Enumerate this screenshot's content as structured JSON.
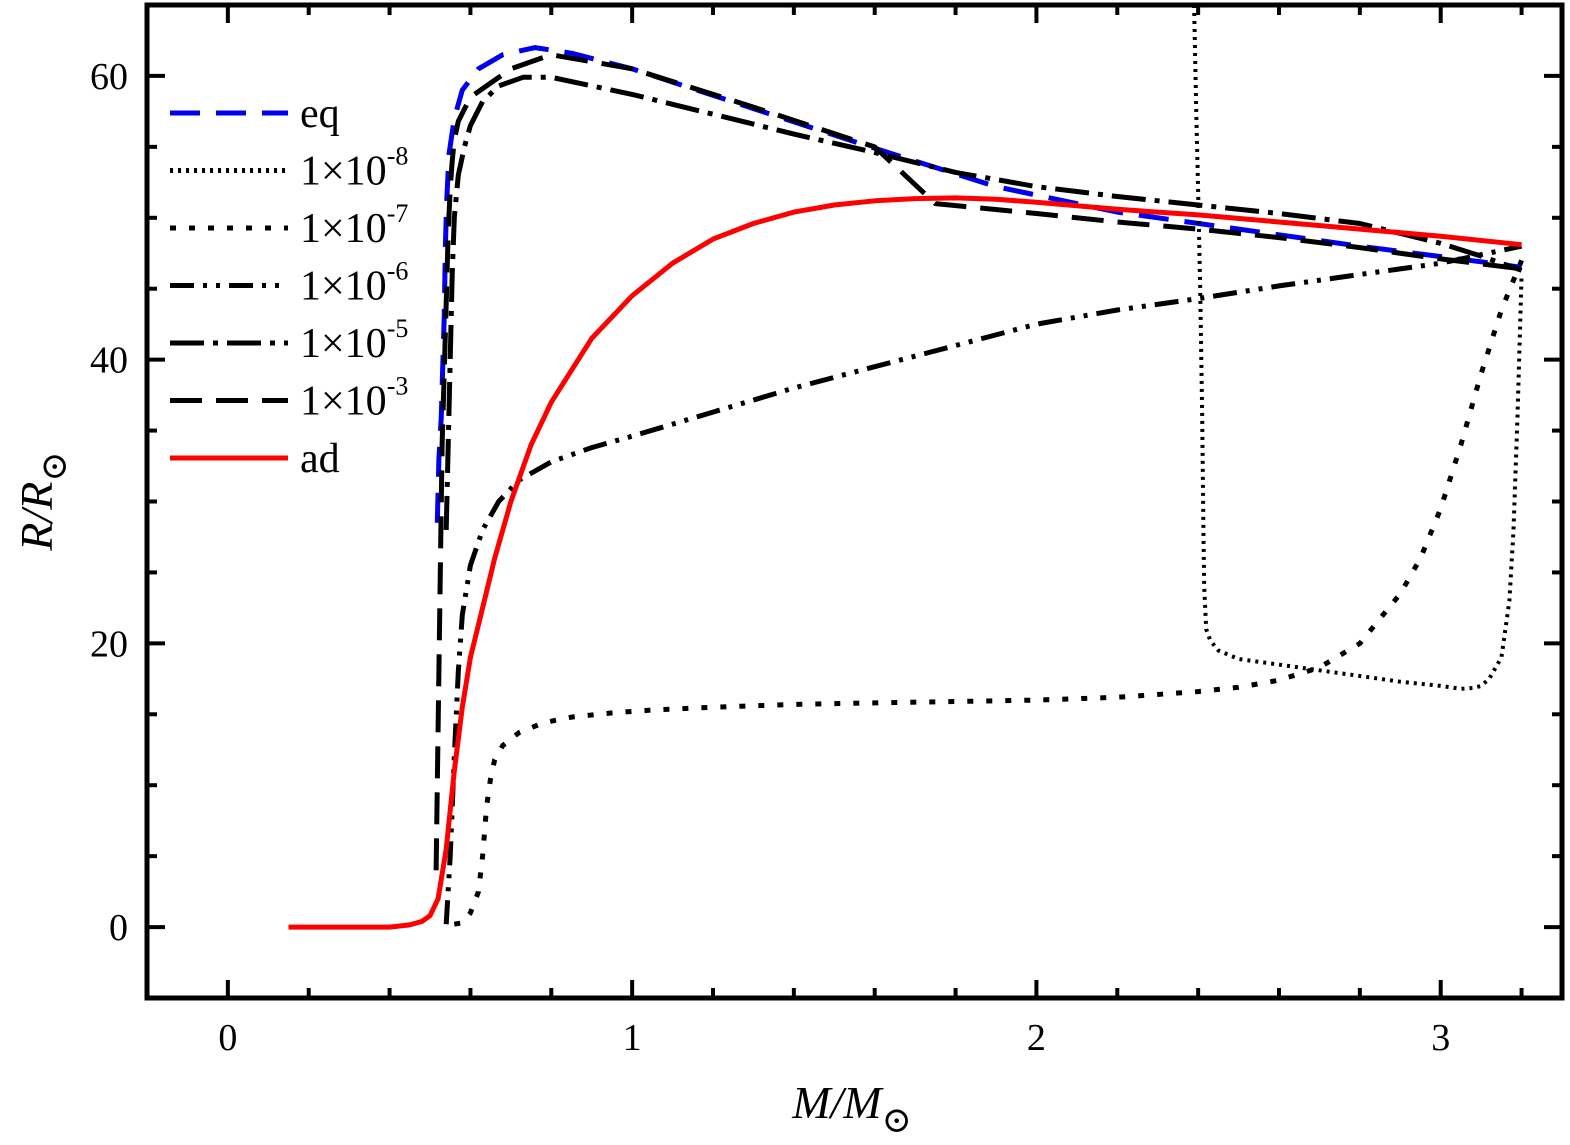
{
  "chart_data": {
    "type": "line",
    "title": "",
    "xlabel": "M/M⊙",
    "ylabel": "R/R⊙",
    "xlim": [
      -0.2,
      3.3
    ],
    "ylim": [
      -5,
      65
    ],
    "x_ticks": [
      0,
      1,
      2,
      3
    ],
    "y_ticks": [
      0,
      20,
      40,
      60
    ],
    "x_tick_labels": [
      "0",
      "1",
      "2",
      "3"
    ],
    "y_tick_labels": [
      "0",
      "20",
      "40",
      "60"
    ],
    "legend_position": "top-left",
    "series": [
      {
        "name": "eq",
        "label_base": "eq",
        "label_exp": "",
        "color": "#0000ee",
        "dash": "30,16",
        "x": [
          0.518,
          0.522,
          0.528,
          0.53,
          0.535,
          0.538,
          0.541,
          0.547,
          0.56,
          0.58,
          0.62,
          0.68,
          0.76,
          0.85,
          1.0,
          1.3,
          1.6,
          1.9,
          2.2,
          2.5,
          2.8,
          3.1,
          3.2
        ],
        "y": [
          28.5,
          33,
          36,
          38,
          43,
          48,
          51,
          54.5,
          57,
          59,
          60.5,
          61.5,
          62,
          61.6,
          60.5,
          57.7,
          54.9,
          52.2,
          50.4,
          49.2,
          48,
          46.9,
          46.5
        ]
      },
      {
        "name": "1×10-8",
        "label_base": "1×10",
        "label_exp": "-8",
        "color": "#000000",
        "dash": "3,5",
        "x": [
          2.39,
          2.395,
          2.4,
          2.405,
          2.41,
          2.413,
          2.415,
          2.42,
          2.43,
          2.45,
          2.5,
          2.6,
          2.7,
          2.8,
          2.9,
          3.0,
          3.05,
          3.08,
          3.1,
          3.12,
          3.15,
          3.17,
          3.18,
          3.19,
          3.2
        ],
        "y": [
          65,
          58,
          52,
          45,
          36,
          28,
          24,
          21,
          20.2,
          19.5,
          18.9,
          18.5,
          18.1,
          17.7,
          17.3,
          17.0,
          16.8,
          16.85,
          17.0,
          17.5,
          19,
          23,
          28,
          36,
          46
        ]
      },
      {
        "name": "1×10-7",
        "label_base": "1×10",
        "label_exp": "-7",
        "color": "#000000",
        "dash": "6,13",
        "x": [
          0.56,
          0.58,
          0.6,
          0.62,
          0.63,
          0.64,
          0.65,
          0.66,
          0.68,
          0.72,
          0.78,
          0.85,
          0.95,
          1.05,
          1.2,
          1.4,
          1.6,
          1.8,
          2.0,
          2.2,
          2.4,
          2.5,
          2.6,
          2.7,
          2.8,
          2.9,
          2.95,
          3.0,
          3.05,
          3.1,
          3.15,
          3.2
        ],
        "y": [
          0.2,
          0.3,
          1.0,
          2.5,
          5,
          8.5,
          10.5,
          11.8,
          12.8,
          13.7,
          14.4,
          14.8,
          15.1,
          15.3,
          15.5,
          15.7,
          15.8,
          15.9,
          16.0,
          16.2,
          16.6,
          16.9,
          17.4,
          18.3,
          20.0,
          23.5,
          26.0,
          29.5,
          34.0,
          39.0,
          43.5,
          47.0
        ]
      },
      {
        "name": "1×10-6",
        "label_base": "1×10",
        "label_exp": "-6",
        "color": "#000000",
        "dash": "24,9,4,9,4,9",
        "x": [
          0.54,
          0.55,
          0.56,
          0.57,
          0.58,
          0.6,
          0.63,
          0.67,
          0.72,
          0.8,
          0.9,
          1.0,
          1.2,
          1.4,
          1.6,
          1.8,
          2.0,
          2.2,
          2.4,
          2.6,
          2.8,
          3.0,
          3.2
        ],
        "y": [
          0.2,
          5,
          12,
          18,
          22,
          25.5,
          28,
          30,
          31.5,
          32.8,
          33.8,
          34.6,
          36.3,
          38.0,
          39.5,
          41.0,
          42.5,
          43.5,
          44.3,
          45.2,
          46.0,
          46.8,
          48.0
        ]
      },
      {
        "name": "1×10-5",
        "label_base": "1×10",
        "label_exp": "-5",
        "color": "#000000",
        "dash": "34,9,5,9",
        "x": [
          0.54,
          0.545,
          0.55,
          0.555,
          0.56,
          0.57,
          0.585,
          0.6,
          0.63,
          0.67,
          0.73,
          0.8,
          1.0,
          1.2,
          1.4,
          1.6,
          1.8,
          2.0,
          2.2,
          2.4,
          2.6,
          2.8,
          3.0,
          3.1,
          3.2
        ],
        "y": [
          28,
          34,
          40,
          46,
          50,
          53,
          55,
          56.5,
          58.2,
          59.3,
          59.9,
          59.9,
          58.7,
          57.3,
          55.9,
          54.6,
          53.2,
          52.2,
          51.5,
          50.9,
          50.3,
          49.6,
          48.2,
          47.3,
          46.3
        ]
      },
      {
        "name": "1×10-3",
        "label_base": "1×10",
        "label_exp": "-3",
        "color": "#000000",
        "dash": "32,14",
        "x": [
          0.515,
          0.52,
          0.525,
          0.53,
          0.536,
          0.54,
          0.545,
          0.55,
          0.555,
          0.56,
          0.57,
          0.6,
          0.7,
          0.8,
          1.0,
          1.3,
          1.6,
          1.75,
          2.0,
          2.2,
          2.4,
          2.6,
          2.8,
          3.0,
          3.2
        ],
        "y": [
          4,
          14,
          24,
          34,
          40,
          44,
          49,
          52,
          54,
          55.5,
          56.8,
          58.5,
          60.5,
          61.5,
          60.5,
          57.8,
          55.0,
          51.0,
          50.3,
          49.7,
          49.2,
          48.6,
          47.9,
          47.1,
          46.4
        ]
      },
      {
        "name": "ad",
        "label_base": "ad",
        "label_exp": "",
        "color": "#ff0000",
        "dash": "",
        "x": [
          0.15,
          0.3,
          0.4,
          0.45,
          0.48,
          0.5,
          0.52,
          0.54,
          0.56,
          0.58,
          0.6,
          0.63,
          0.66,
          0.7,
          0.75,
          0.8,
          0.9,
          1.0,
          1.1,
          1.2,
          1.3,
          1.4,
          1.5,
          1.6,
          1.7,
          1.8,
          1.9,
          2.0,
          2.2,
          2.4,
          2.6,
          2.8,
          3.0,
          3.2
        ],
        "y": [
          0,
          0,
          0,
          0.15,
          0.4,
          0.8,
          2,
          5.5,
          11,
          15.5,
          19,
          22.5,
          26,
          30,
          34,
          37,
          41.5,
          44.5,
          46.8,
          48.5,
          49.6,
          50.4,
          50.9,
          51.2,
          51.35,
          51.4,
          51.3,
          51.1,
          50.6,
          50.2,
          49.7,
          49.2,
          48.7,
          48.1
        ]
      }
    ]
  }
}
